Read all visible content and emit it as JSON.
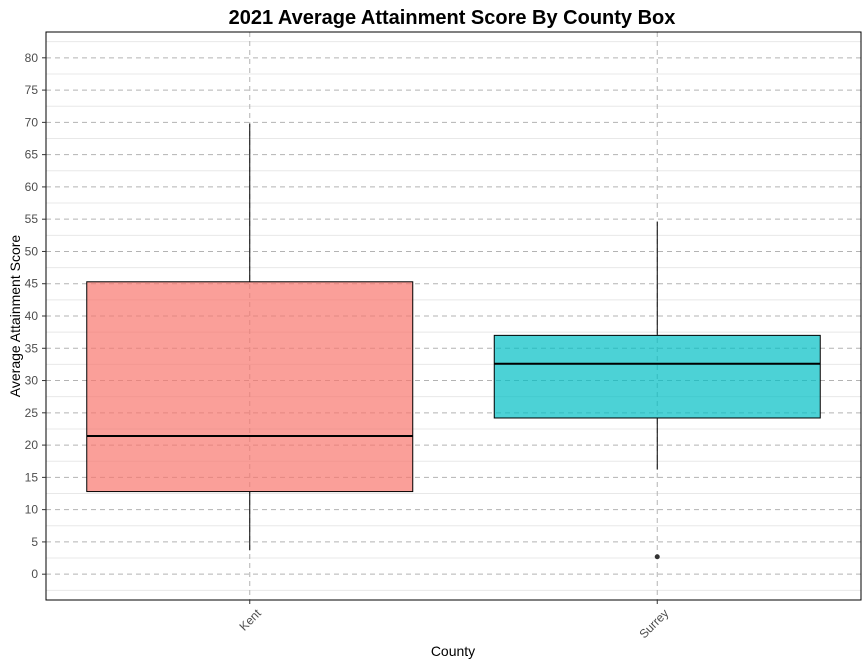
{
  "chart_data": {
    "type": "box",
    "title": "2021 Average Attainment Score By County Box",
    "xlabel": "County",
    "ylabel": "Average Attainment Score",
    "ylim": [
      -4,
      84
    ],
    "yticks": [
      0,
      5,
      10,
      15,
      20,
      25,
      30,
      35,
      40,
      45,
      50,
      55,
      60,
      65,
      70,
      75,
      80
    ],
    "categories": [
      "Kent",
      "Surrey"
    ],
    "boxes": [
      {
        "name": "Kent",
        "min": 3.7,
        "q1": 12.8,
        "median": 21.4,
        "q3": 45.3,
        "max": 69.8,
        "outliers": [],
        "color": "#f8766d"
      },
      {
        "name": "Surrey",
        "min": 16.2,
        "q1": 24.2,
        "median": 32.6,
        "q3": 37.0,
        "max": 54.6,
        "outliers": [
          2.7
        ],
        "color": "#00bfc4"
      }
    ],
    "grid": true,
    "legend": "none"
  }
}
